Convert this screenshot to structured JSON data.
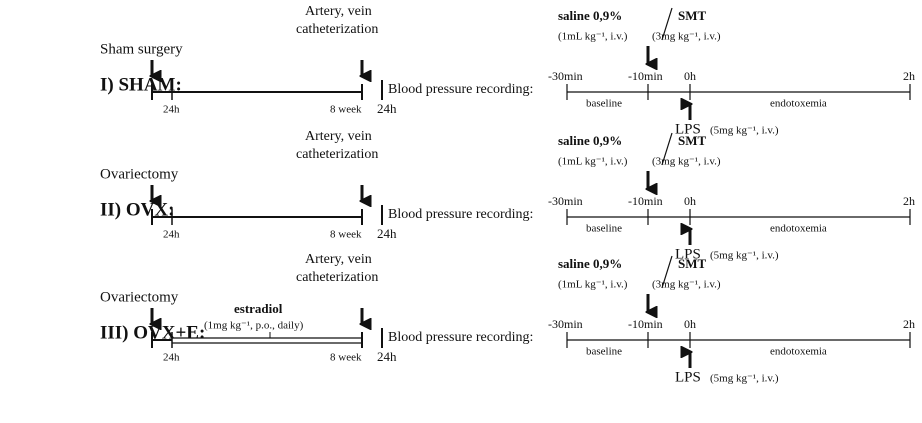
{
  "rows": [
    {
      "label": "I) SHAM:",
      "surgery": "Sham surgery",
      "catheter_1": "Artery, vein",
      "catheter_2": "catheterization",
      "t_24h": "24h",
      "t_8week": "8 week",
      "t_rec": "24h",
      "recording": "Blood pressure recording:",
      "saline": "saline 0,9%",
      "saline_dose": "(1mL kg⁻¹, i.v.)",
      "smt": "SMT",
      "smt_dose": "(3mg kg⁻¹, i.v.)",
      "t_m30": "-30min",
      "t_m10": "-10min",
      "t_0": "0h",
      "t_2": "2h",
      "baseline": "baseline",
      "endotoxemia": "endotoxemia",
      "lps": "LPS",
      "lps_dose": "(5mg kg⁻¹, i.v.)"
    },
    {
      "label": "II) OVX:",
      "surgery": "Ovariectomy",
      "catheter_1": "Artery, vein",
      "catheter_2": "catheterization",
      "t_24h": "24h",
      "t_8week": "8 week",
      "t_rec": "24h",
      "recording": "Blood pressure recording:",
      "saline": "saline 0,9%",
      "saline_dose": "(1mL kg⁻¹, i.v.)",
      "smt": "SMT",
      "smt_dose": "(3mg kg⁻¹, i.v.)",
      "t_m30": "-30min",
      "t_m10": "-10min",
      "t_0": "0h",
      "t_2": "2h",
      "baseline": "baseline",
      "endotoxemia": "endotoxemia",
      "lps": "LPS",
      "lps_dose": "(5mg kg⁻¹, i.v.)"
    },
    {
      "label": "III) OVX+E:",
      "surgery": "Ovariectomy",
      "estradiol": "estradiol",
      "estradiol_dose": "(1mg kg⁻¹, p.o., daily)",
      "catheter_1": "Artery, vein",
      "catheter_2": "catheterization",
      "t_24h": "24h",
      "t_8week": "8 week",
      "t_rec": "24h",
      "recording": "Blood pressure recording:",
      "saline": "saline 0,9%",
      "saline_dose": "(1mL kg⁻¹, i.v.)",
      "smt": "SMT",
      "smt_dose": "(3mg kg⁻¹, i.v.)",
      "t_m30": "-30min",
      "t_m10": "-10min",
      "t_0": "0h",
      "t_2": "2h",
      "baseline": "baseline",
      "endotoxemia": "endotoxemia",
      "lps": "LPS",
      "lps_dose": "(5mg kg⁻¹, i.v.)"
    }
  ]
}
